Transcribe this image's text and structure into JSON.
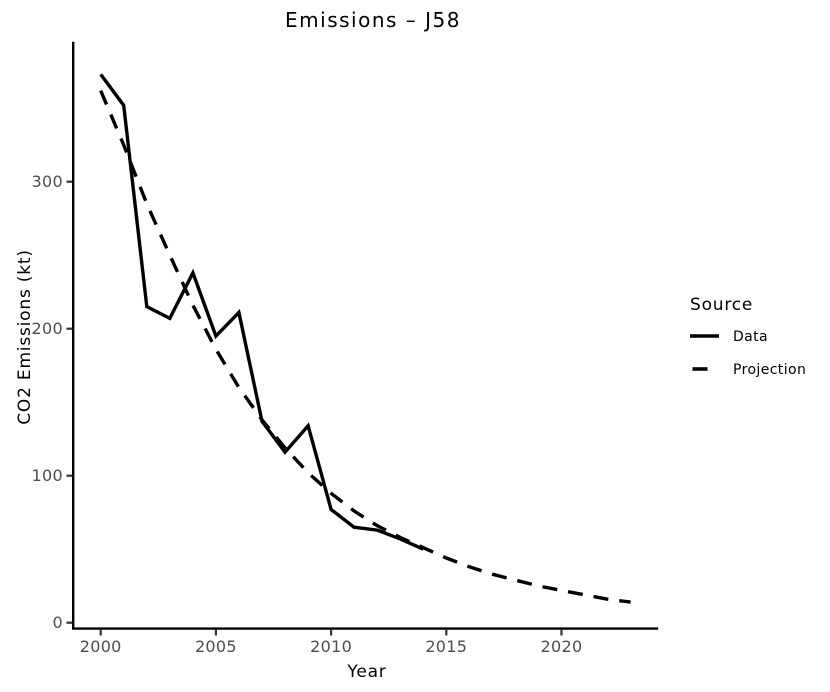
{
  "chart_data": {
    "type": "line",
    "title": "Emissions – J58",
    "xlabel": "Year",
    "ylabel": "CO2 Emissions (kt)",
    "legend_title": "Source",
    "legend_position": "right",
    "grid": false,
    "x_ticks": [
      2000,
      2005,
      2010,
      2015,
      2020
    ],
    "y_ticks": [
      0,
      100,
      200,
      300
    ],
    "xlim": [
      1998.8,
      2024.2
    ],
    "ylim": [
      0,
      394
    ],
    "series": [
      {
        "name": "Data",
        "linetype": "solid",
        "x": [
          2000,
          2001,
          2002,
          2003,
          2004,
          2005,
          2006,
          2007,
          2008,
          2009,
          2010,
          2011,
          2012,
          2013,
          2014
        ],
        "values": [
          373,
          352,
          215,
          207,
          238,
          195,
          211,
          137,
          116,
          134,
          77,
          65,
          63,
          57,
          50
        ]
      },
      {
        "name": "Projection",
        "linetype": "dashed",
        "x": [
          2000,
          2001,
          2002,
          2003,
          2004,
          2005,
          2006,
          2007,
          2008,
          2009,
          2010,
          2011,
          2012,
          2013,
          2014,
          2015,
          2016,
          2017,
          2018,
          2019,
          2020,
          2021,
          2022,
          2023
        ],
        "values": [
          362,
          325,
          285,
          250,
          216,
          186,
          160,
          138,
          119,
          102,
          88,
          76,
          66,
          58,
          51,
          44,
          38,
          33,
          29,
          25,
          22,
          19,
          16,
          14
        ]
      }
    ],
    "colors": {
      "line": "#000000",
      "axis": "#000000",
      "tick_label": "#4D4D4D",
      "background": "#FFFFFF"
    }
  }
}
